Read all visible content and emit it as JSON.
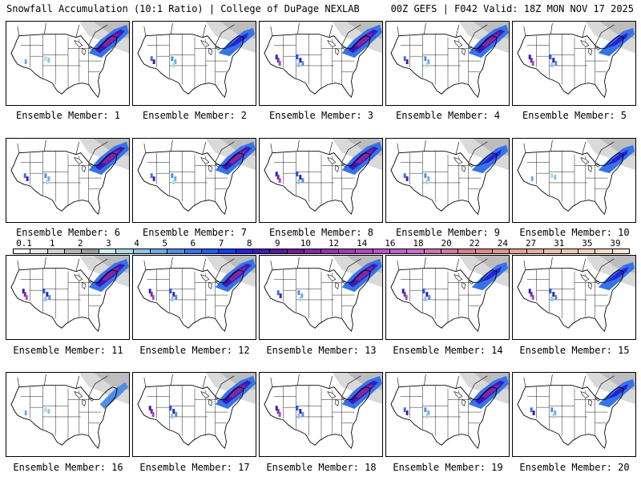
{
  "header": {
    "left": "Snowfall Accumulation (10:1 Ratio) | College of DuPage NEXLAB",
    "right": "00Z GEFS | F042 Valid: 18Z MON NOV 17 2025"
  },
  "members": [
    {
      "label": "Ensemble Member: 1",
      "west": "low",
      "east": "high"
    },
    {
      "label": "Ensemble Member: 2",
      "west": "med",
      "east": "med"
    },
    {
      "label": "Ensemble Member: 3",
      "west": "high",
      "east": "high"
    },
    {
      "label": "Ensemble Member: 4",
      "west": "med",
      "east": "high"
    },
    {
      "label": "Ensemble Member: 5",
      "west": "high",
      "east": "med"
    },
    {
      "label": "Ensemble Member: 6",
      "west": "med",
      "east": "high"
    },
    {
      "label": "Ensemble Member: 7",
      "west": "med",
      "east": "high"
    },
    {
      "label": "Ensemble Member: 8",
      "west": "high",
      "east": "high"
    },
    {
      "label": "Ensemble Member: 9",
      "west": "med",
      "east": "med"
    },
    {
      "label": "Ensemble Member: 10",
      "west": "low",
      "east": "med"
    },
    {
      "label": "Ensemble Member: 11",
      "west": "high",
      "east": "high"
    },
    {
      "label": "Ensemble Member: 12",
      "west": "high",
      "east": "high"
    },
    {
      "label": "Ensemble Member: 13",
      "west": "med",
      "east": "high"
    },
    {
      "label": "Ensemble Member: 14",
      "west": "high",
      "east": "med"
    },
    {
      "label": "Ensemble Member: 15",
      "west": "high",
      "east": "med"
    },
    {
      "label": "Ensemble Member: 16",
      "west": "low",
      "east": "low"
    },
    {
      "label": "Ensemble Member: 17",
      "west": "high",
      "east": "high"
    },
    {
      "label": "Ensemble Member: 18",
      "west": "high",
      "east": "high"
    },
    {
      "label": "Ensemble Member: 19",
      "west": "med",
      "east": "high"
    },
    {
      "label": "Ensemble Member: 20",
      "west": "med",
      "east": "med"
    }
  ],
  "scale": {
    "labels": [
      "0.1",
      "1",
      "2",
      "3",
      "4",
      "5",
      "6",
      "7",
      "8",
      "9",
      "10",
      "12",
      "14",
      "16",
      "18",
      "20",
      "22",
      "24",
      "27",
      "31",
      "35",
      "39"
    ],
    "colors": [
      "#ffffff",
      "#e6e6e6",
      "#cfcfcf",
      "#b4b4b4",
      "#9a9a9a",
      "#cdeef0",
      "#a8dbe6",
      "#8cc3e8",
      "#6fa8e8",
      "#4f8ee6",
      "#3574e8",
      "#1f5cf0",
      "#0d3cff",
      "#2a1fd6",
      "#3d1ab8",
      "#56189e",
      "#6c1c96",
      "#8227a0",
      "#9632ad",
      "#a23bb8",
      "#ae47c2",
      "#b852c8",
      "#c060c8",
      "#c86ec6",
      "#cc74b0",
      "#d0789e",
      "#d4808e",
      "#d88c86",
      "#dc9888",
      "#e0a48e",
      "#e6b098",
      "#ebbca4",
      "#f0c6ae",
      "#f4d0ba",
      "#f7dac8",
      "#fae4d6"
    ]
  }
}
